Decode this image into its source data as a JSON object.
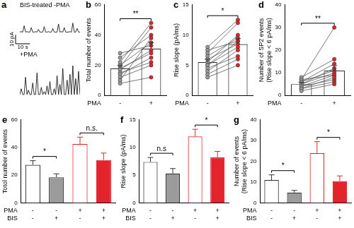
{
  "chart_data": [
    {
      "panel": "a",
      "type": "line",
      "title": "BIS-treated -PMA",
      "x": [
        0,
        1,
        2,
        3,
        4,
        5,
        6,
        7,
        8,
        9,
        10,
        11,
        12,
        13,
        14,
        15,
        16,
        17,
        18,
        19,
        20,
        21,
        22,
        23,
        24,
        25,
        26,
        27,
        28,
        29,
        30,
        31,
        32,
        33,
        34,
        35,
        36,
        37,
        38,
        39,
        40,
        41,
        42
      ],
      "values": [
        0,
        0.5,
        0,
        7,
        0,
        0.5,
        0,
        0,
        5,
        0,
        0,
        0.5,
        0,
        3,
        0,
        0,
        0,
        6,
        0,
        0,
        0.5,
        0,
        0,
        4,
        0,
        0,
        0,
        9,
        0,
        0.5,
        0,
        5,
        0,
        0,
        0,
        0.5,
        0,
        10,
        0,
        0,
        4,
        0,
        0
      ],
      "xlim": [
        0,
        42
      ],
      "ylim": [
        -2,
        24
      ],
      "color": "#000000",
      "tick_labels": false,
      "scale_bar": {
        "x": 10,
        "y": 10,
        "x_label": "10 s",
        "y_label": "10 pA"
      }
    },
    {
      "type": "line",
      "title": "+PMA",
      "x": [
        0,
        1,
        2,
        3,
        4,
        5,
        6,
        7,
        8,
        9,
        10,
        11,
        12,
        13,
        14,
        15,
        16,
        17,
        18,
        19,
        20,
        21,
        22,
        23,
        24,
        25,
        26,
        27,
        28,
        29,
        30,
        31,
        32,
        33,
        34,
        35,
        36,
        37,
        38,
        39,
        40,
        41,
        42
      ],
      "values": [
        0,
        4,
        0,
        0,
        12,
        0,
        3,
        0,
        0,
        8,
        0,
        0,
        15,
        0,
        0,
        5,
        0,
        2,
        0,
        6,
        0,
        9,
        0,
        0,
        4,
        0,
        13,
        0,
        7,
        0,
        18,
        0,
        0,
        10,
        0,
        14,
        0,
        20,
        0,
        11,
        0,
        16,
        0
      ],
      "xlim": [
        0,
        42
      ],
      "ylim": [
        -2,
        24
      ],
      "color": "#000000",
      "tick_labels": false
    },
    {
      "panel": "b",
      "type": "bar",
      "y_label": "Total number of events",
      "rows": [
        {
          "label": "PMA",
          "values": [
            "-",
            "+"
          ]
        }
      ],
      "values": [
        18,
        31
      ],
      "errors": [
        2,
        4
      ],
      "colors": [
        "#ffffff",
        "#ffffff"
      ],
      "paired": {
        "colors": [
          "#9b9b9b",
          "#e3242b"
        ],
        "values": [
          [
            8,
            12
          ],
          [
            10,
            38
          ],
          [
            12,
            20
          ],
          [
            14,
            25
          ],
          [
            15,
            22
          ],
          [
            17,
            30
          ],
          [
            18,
            28
          ],
          [
            19,
            45
          ],
          [
            20,
            35
          ],
          [
            22,
            48
          ],
          [
            25,
            40
          ],
          [
            28,
            33
          ]
        ]
      },
      "significance": [
        {
          "from": 0,
          "to": 1,
          "label": "**"
        }
      ],
      "ylim": [
        0,
        60
      ],
      "yticks": [
        0,
        20,
        40,
        60
      ]
    },
    {
      "panel": "c",
      "type": "bar",
      "y_label": "Rise slope (pA/ms)",
      "rows": [
        {
          "label": "PMA",
          "values": [
            "-",
            "+"
          ]
        }
      ],
      "values": [
        5.5,
        8.5
      ],
      "errors": [
        0.5,
        0.9
      ],
      "colors": [
        "#ffffff",
        "#ffffff"
      ],
      "paired": {
        "colors": [
          "#9b9b9b",
          "#e3242b"
        ],
        "values": [
          [
            3,
            5
          ],
          [
            3.5,
            6
          ],
          [
            4,
            7.5
          ],
          [
            4.5,
            6.5
          ],
          [
            5,
            9
          ],
          [
            5,
            8
          ],
          [
            5.5,
            10
          ],
          [
            6,
            8.5
          ],
          [
            6.5,
            9.5
          ],
          [
            7,
            12
          ],
          [
            7.5,
            9
          ],
          [
            8,
            12.5
          ]
        ]
      },
      "significance": [
        {
          "from": 0,
          "to": 1,
          "label": "*"
        }
      ],
      "ylim": [
        0,
        15
      ],
      "yticks": [
        0,
        5,
        10,
        15
      ]
    },
    {
      "panel": "d",
      "type": "bar",
      "y_label": [
        "Number of SP2 events",
        "(Rise slope < 6 pA/ms)"
      ],
      "rows": [
        {
          "label": "PMA",
          "values": [
            "-",
            "+"
          ]
        }
      ],
      "values": [
        5,
        11
      ],
      "errors": [
        0.8,
        2.2
      ],
      "colors": [
        "#ffffff",
        "#ffffff"
      ],
      "paired": {
        "colors": [
          "#9b9b9b",
          "#e3242b"
        ],
        "values": [
          [
            2,
            5
          ],
          [
            3,
            6
          ],
          [
            3,
            8
          ],
          [
            4,
            7
          ],
          [
            4,
            9
          ],
          [
            5,
            10
          ],
          [
            5,
            12
          ],
          [
            6,
            11
          ],
          [
            6,
            14
          ],
          [
            7,
            9
          ],
          [
            8,
            16
          ],
          [
            7,
            30
          ]
        ]
      },
      "significance": [
        {
          "from": 0,
          "to": 1,
          "label": "**"
        }
      ],
      "ylim": [
        0,
        40
      ],
      "yticks": [
        0,
        10,
        20,
        30,
        40
      ]
    },
    {
      "panel": "e",
      "type": "bar",
      "y_label": "Totol number of events",
      "rows": [
        {
          "label": "PMA",
          "values": [
            "-",
            "-",
            "+",
            "+"
          ]
        },
        {
          "label": "BIS",
          "values": [
            "-",
            "+",
            "-",
            "+"
          ]
        }
      ],
      "values": [
        27.5,
        18.5,
        42.5,
        31
      ],
      "errors": [
        3,
        2.5,
        5,
        5
      ],
      "colors": [
        "#ffffff",
        "#9b9b9b",
        "#ffffff",
        "#e3242b"
      ],
      "significance": [
        {
          "from": 0,
          "to": 1,
          "label": "*"
        },
        {
          "from": 2,
          "to": 3,
          "label": "n.s."
        }
      ],
      "ylim": [
        0,
        60
      ],
      "yticks": [
        0,
        20,
        40,
        60
      ]
    },
    {
      "panel": "f",
      "type": "bar",
      "y_label": "Rise slope (pA/ms)",
      "rows": [
        {
          "label": "PMA",
          "values": [
            "-",
            "-",
            "+",
            "+"
          ]
        },
        {
          "label": "BIS",
          "values": [
            "-",
            "+",
            "-",
            "+"
          ]
        }
      ],
      "values": [
        7.4,
        5.3,
        12,
        8.2
      ],
      "errors": [
        0.8,
        0.9,
        1.3,
        1.1
      ],
      "colors": [
        "#ffffff",
        "#9b9b9b",
        "#ffffff",
        "#e3242b"
      ],
      "significance": [
        {
          "from": 0,
          "to": 1,
          "label": "n.s"
        },
        {
          "from": 2,
          "to": 3,
          "label": "*"
        }
      ],
      "ylim": [
        0,
        15
      ],
      "yticks": [
        0,
        5,
        10,
        15
      ]
    },
    {
      "panel": "g",
      "type": "bar",
      "y_label": [
        "Number of events",
        "(Rise slope < 6 pA/ms)"
      ],
      "rows": [
        {
          "label": "PMA",
          "values": [
            "-",
            "-",
            "+",
            "+"
          ]
        },
        {
          "label": "BIS",
          "values": [
            "-",
            "+",
            "-",
            "+"
          ]
        }
      ],
      "values": [
        11,
        5,
        24,
        10.5
      ],
      "errors": [
        2.5,
        1,
        5.5,
        2.5
      ],
      "colors": [
        "#ffffff",
        "#9b9b9b",
        "#ffffff",
        "#e3242b"
      ],
      "significance": [
        {
          "from": 0,
          "to": 1,
          "label": "*"
        },
        {
          "from": 2,
          "to": 3,
          "label": "*"
        }
      ],
      "ylim": [
        0,
        40
      ],
      "yticks": [
        0,
        10,
        20,
        30,
        40
      ]
    }
  ]
}
